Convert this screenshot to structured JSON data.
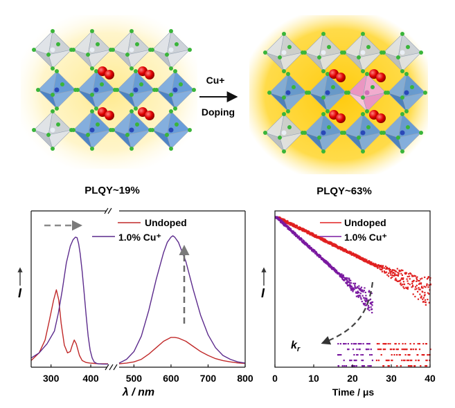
{
  "scheme": {
    "left_label": "PLQY~19%",
    "right_label": "PLQY~63%",
    "arrow_top": "Cu+",
    "arrow_bottom": "Doping",
    "colors": {
      "glow": "#ffd000",
      "octahedron": "#4f8fd8",
      "octahedron_light": "#c8ccd4",
      "halide": "#3ab53a",
      "oxygen": "#e00000",
      "dopant": "#f2a6d6"
    }
  },
  "chart_data": [
    {
      "type": "line",
      "title": "",
      "xlabel": "λ / nm",
      "ylabel": "I",
      "xlim": [
        250,
        800
      ],
      "x_break": [
        440,
        460
      ],
      "xticks": [
        300,
        400,
        500,
        600,
        700,
        800
      ],
      "xtick_labels": [
        "300",
        "400",
        "500",
        "600",
        "700",
        "800"
      ],
      "legend": [
        "Undoped",
        "1.0% Cu⁺"
      ],
      "legend_position": "top-right",
      "series": [
        {
          "name": "Undoped",
          "color": "#c02828",
          "segments": [
            {
              "x": [
                250,
                270,
                285,
                295,
                303,
                310,
                316,
                322,
                330,
                338,
                345,
                350,
                355,
                360,
                368,
                375,
                385,
                395,
                405,
                415,
                425,
                440
              ],
              "y": [
                0.03,
                0.09,
                0.19,
                0.33,
                0.5,
                0.58,
                0.5,
                0.32,
                0.15,
                0.09,
                0.1,
                0.15,
                0.19,
                0.16,
                0.07,
                0.03,
                0.015,
                0.01,
                0.008,
                0.006,
                0.005,
                0.005
              ]
            },
            {
              "x": [
                460,
                480,
                500,
                520,
                540,
                560,
                580,
                600,
                610,
                620,
                640,
                660,
                680,
                700,
                720,
                740,
                760,
                780,
                800
              ],
              "y": [
                0.005,
                0.01,
                0.02,
                0.04,
                0.08,
                0.13,
                0.18,
                0.21,
                0.21,
                0.205,
                0.18,
                0.14,
                0.1,
                0.07,
                0.045,
                0.03,
                0.02,
                0.012,
                0.008
              ]
            }
          ]
        },
        {
          "name": "1.0% Cu⁺",
          "color": "#5b2a8c",
          "segments": [
            {
              "x": [
                250,
                270,
                290,
                305,
                315,
                325,
                335,
                345,
                352,
                358,
                362,
                366,
                370,
                375,
                380,
                385,
                390,
                395,
                400,
                405,
                410,
                415,
                425,
                440
              ],
              "y": [
                0.05,
                0.09,
                0.16,
                0.26,
                0.4,
                0.58,
                0.79,
                0.92,
                0.97,
                0.99,
                0.985,
                0.94,
                0.86,
                0.72,
                0.55,
                0.38,
                0.22,
                0.11,
                0.05,
                0.02,
                0.01,
                0.005,
                0.003,
                0.002
              ]
            },
            {
              "x": [
                460,
                480,
                500,
                520,
                540,
                560,
                580,
                590,
                600,
                605,
                610,
                620,
                640,
                660,
                680,
                700,
                720,
                740,
                760,
                780,
                800
              ],
              "y": [
                0.01,
                0.04,
                0.1,
                0.22,
                0.42,
                0.66,
                0.87,
                0.95,
                0.99,
                1.0,
                0.99,
                0.95,
                0.8,
                0.58,
                0.38,
                0.23,
                0.13,
                0.07,
                0.04,
                0.02,
                0.01
              ]
            }
          ]
        }
      ]
    },
    {
      "type": "scatter",
      "title": "",
      "xlabel": "Time / μs",
      "ylabel": "I",
      "xlim": [
        0,
        40
      ],
      "xticks": [
        0,
        10,
        20,
        30,
        40
      ],
      "xtick_labels": [
        "0",
        "10",
        "20",
        "30",
        "40"
      ],
      "legend": [
        "Undoped",
        "1.0% Cu⁺"
      ],
      "legend_position": "top-right",
      "annotation": "kr",
      "series": [
        {
          "name": "Undoped",
          "color": "#e02020",
          "model": "exponential decay",
          "tau_us": 11.5,
          "noise_floor_onset_us": 26
        },
        {
          "name": "1.0% Cu⁺",
          "color": "#7a1aa0",
          "model": "exponential decay",
          "tau_us": 6.2,
          "noise_floor_onset_us": 16
        }
      ]
    }
  ]
}
